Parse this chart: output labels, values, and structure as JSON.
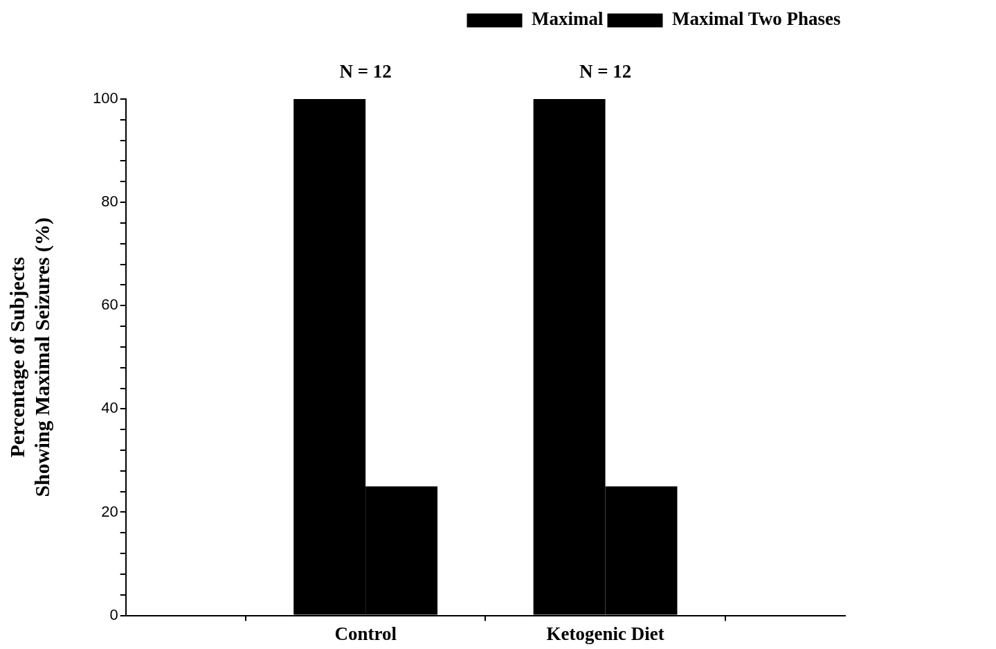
{
  "chart_data": {
    "type": "bar",
    "ylabel": "Percentage of Subjects Showing Maximal Seizures (%)",
    "categories": [
      null,
      "Control",
      "Ketogenic Diet",
      null
    ],
    "series": [
      {
        "name": "Maximal",
        "color": "#000000",
        "values": [
          null,
          100,
          100,
          null
        ]
      },
      {
        "name": "Maximal Two Phases",
        "color": "#000000",
        "values": [
          null,
          25,
          25,
          null
        ]
      }
    ],
    "ylim": [
      0,
      100
    ],
    "yticks": [
      0,
      {
        "value": 4,
        "label": null
      },
      {
        "value": 8,
        "label": null
      },
      {
        "value": 12,
        "label": null
      },
      {
        "value": 16,
        "label": null
      },
      20,
      {
        "value": 24,
        "label": null
      },
      {
        "value": 28,
        "label": null
      },
      {
        "value": 32,
        "label": null
      },
      {
        "value": 36,
        "label": null
      },
      40,
      {
        "value": 44,
        "label": null
      },
      {
        "value": 48,
        "label": null
      },
      {
        "value": 52,
        "label": null
      },
      {
        "value": 56,
        "label": null
      },
      60,
      {
        "value": 64,
        "label": null
      },
      {
        "value": 68,
        "label": null
      },
      {
        "value": 72,
        "label": null
      },
      {
        "value": 76,
        "label": null
      },
      80,
      {
        "value": 84,
        "label": null
      },
      {
        "value": 88,
        "label": null
      },
      {
        "value": 92,
        "label": null
      },
      {
        "value": 96,
        "label": null
      },
      100
    ],
    "annotations": [
      "N = 12",
      "N = 12"
    ],
    "grid": false,
    "legend": "top right"
  }
}
